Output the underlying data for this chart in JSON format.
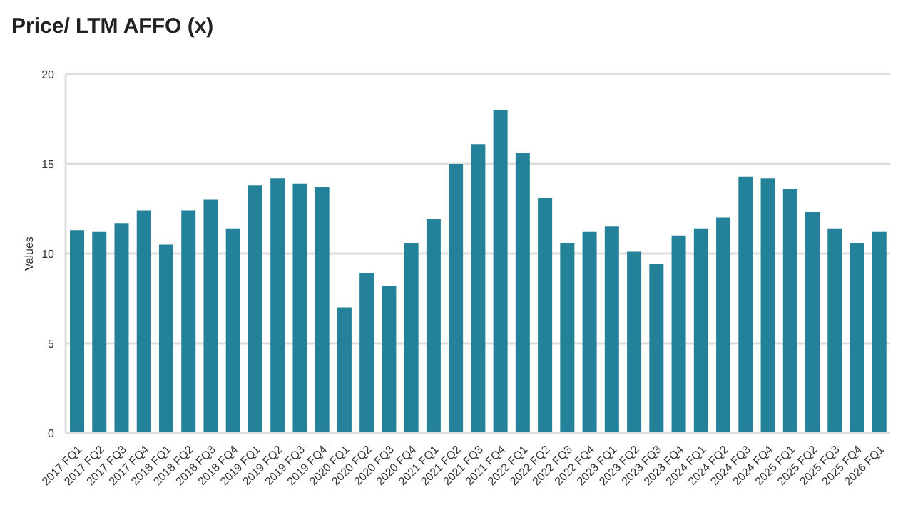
{
  "chart_data": {
    "type": "bar",
    "title": "Price/ LTM AFFO (x)",
    "ylabel": "Values",
    "categories": [
      "2017 FQ1",
      "2017 FQ2",
      "2017 FQ3",
      "2017 FQ4",
      "2018 FQ1",
      "2018 FQ2",
      "2018 FQ3",
      "2018 FQ4",
      "2019 FQ1",
      "2019 FQ2",
      "2019 FQ3",
      "2019 FQ4",
      "2020 FQ1",
      "2020 FQ2",
      "2020 FQ3",
      "2020 FQ4",
      "2021 FQ1",
      "2021 FQ2",
      "2021 FQ3",
      "2021 FQ4",
      "2022 FQ1",
      "2022 FQ2",
      "2022 FQ3",
      "2022 FQ4",
      "2023 FQ1",
      "2023 FQ2",
      "2023 FQ3",
      "2023 FQ4",
      "2024 FQ1",
      "2024 FQ2",
      "2024 FQ3",
      "2024 FQ4",
      "2025 FQ1",
      "2025 FQ2",
      "2025 FQ3",
      "2025 FQ4",
      "2026 FQ1"
    ],
    "values": [
      11.3,
      11.2,
      11.7,
      12.4,
      10.5,
      12.4,
      13.0,
      11.4,
      13.8,
      14.2,
      13.9,
      13.7,
      7.0,
      8.9,
      8.2,
      10.6,
      11.9,
      15.0,
      16.1,
      18.0,
      15.6,
      13.1,
      10.6,
      11.2,
      11.5,
      10.1,
      9.4,
      11.0,
      11.4,
      12.0,
      14.3,
      14.2,
      13.6,
      12.3,
      11.4,
      10.6,
      11.2
    ],
    "color": "#23829a",
    "ylim": [
      0,
      20
    ],
    "yticks": [
      0,
      5,
      10,
      15,
      20
    ],
    "grid": "y"
  }
}
